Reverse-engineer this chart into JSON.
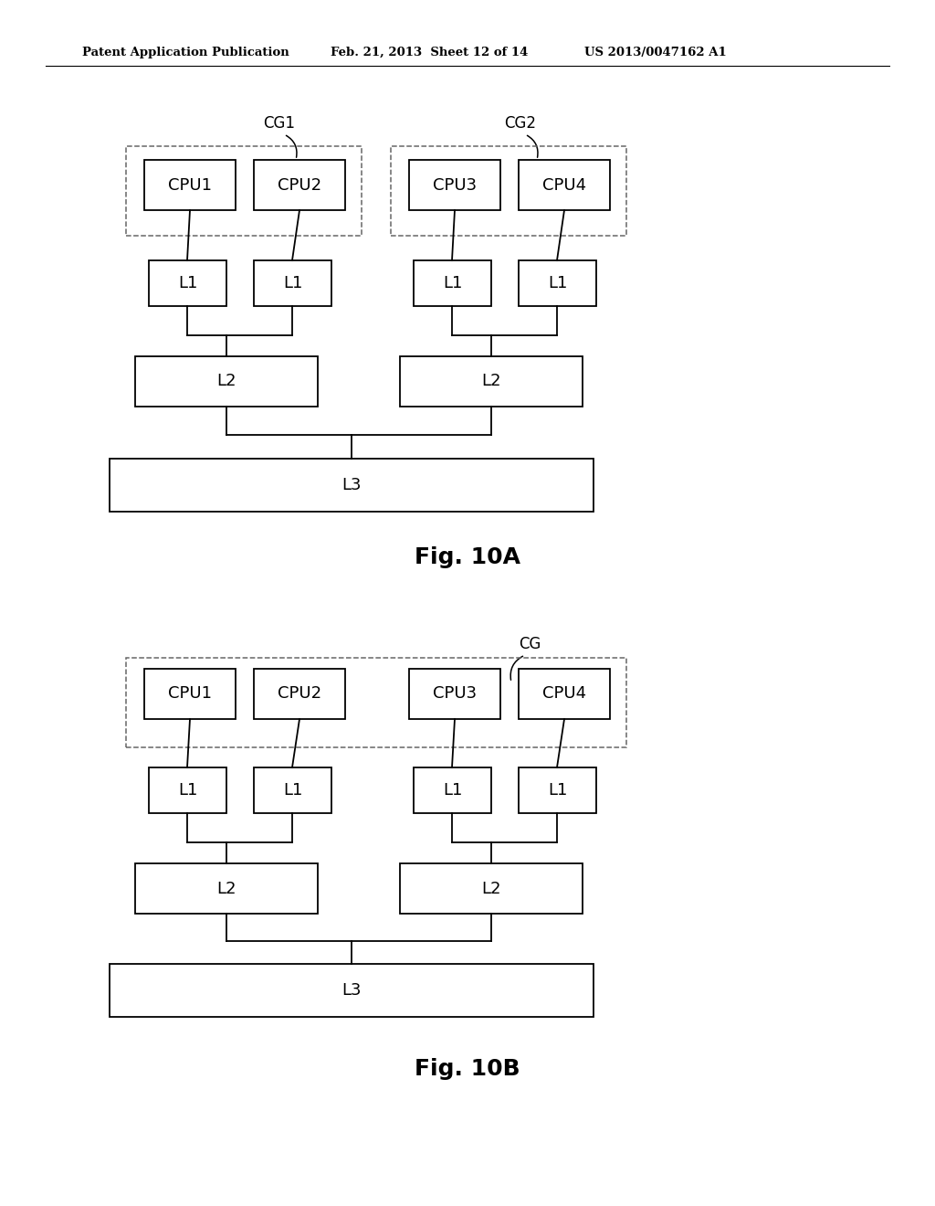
{
  "bg_color": "#ffffff",
  "text_color": "#000000",
  "header_left": "Patent Application Publication",
  "header_mid": "Feb. 21, 2013  Sheet 12 of 14",
  "header_right": "US 2013/0047162 A1",
  "fig_label_A": "Fig. 10A",
  "fig_label_B": "Fig. 10B",
  "line_color": "#000000",
  "dashed_edge": "#666666"
}
